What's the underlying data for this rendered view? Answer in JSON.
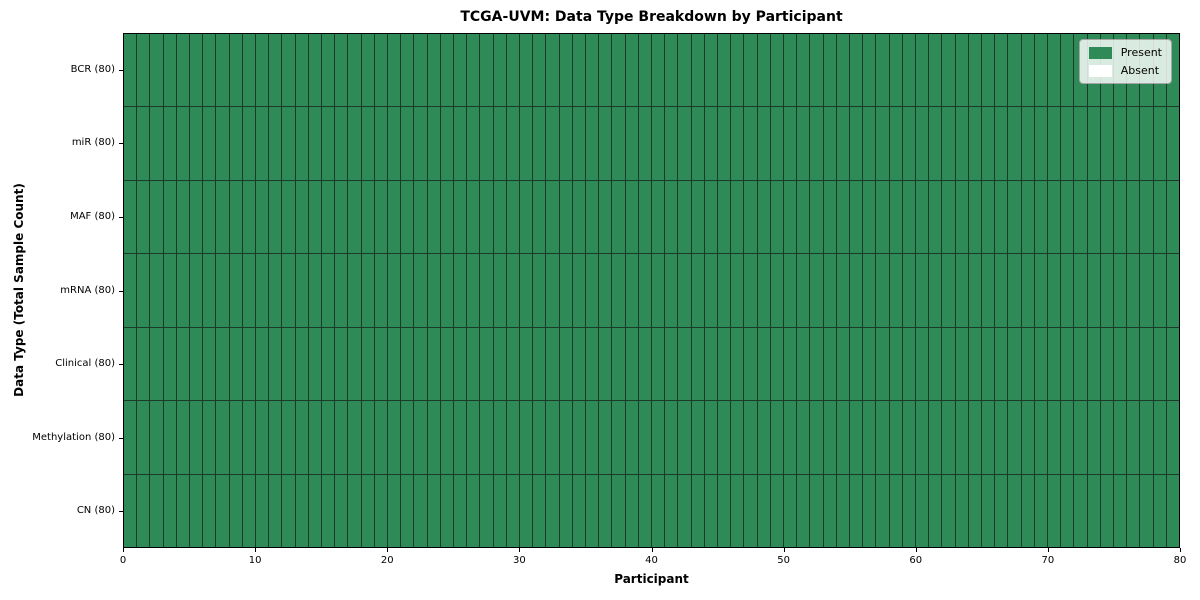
{
  "figure": {
    "title": "TCGA-UVM: Data Type Breakdown by Participant"
  },
  "chart_data": {
    "type": "heatmap",
    "title": "TCGA-UVM: Data Type Breakdown by Participant",
    "xlabel": "Participant",
    "ylabel": "Data Type (Total Sample Count)",
    "xlim": [
      0,
      80
    ],
    "x_ticks": [
      0,
      10,
      20,
      30,
      40,
      50,
      60,
      70,
      80
    ],
    "n_participants": 80,
    "rows": [
      {
        "label": "BCR (80)",
        "data_type": "BCR",
        "total_sample_count": 80,
        "present_count": 80
      },
      {
        "label": "miR (80)",
        "data_type": "miR",
        "total_sample_count": 80,
        "present_count": 80
      },
      {
        "label": "MAF (80)",
        "data_type": "MAF",
        "total_sample_count": 80,
        "present_count": 80
      },
      {
        "label": "mRNA (80)",
        "data_type": "mRNA",
        "total_sample_count": 80,
        "present_count": 80
      },
      {
        "label": "Clinical (80)",
        "data_type": "Clinical",
        "total_sample_count": 80,
        "present_count": 80
      },
      {
        "label": "Methylation (80)",
        "data_type": "Methylation",
        "total_sample_count": 80,
        "present_count": 80
      },
      {
        "label": "CN (80)",
        "data_type": "CN",
        "total_sample_count": 80,
        "present_count": 80
      }
    ],
    "legend": {
      "position": "upper right",
      "entries": [
        {
          "label": "Present",
          "color": "#2e8b57"
        },
        {
          "label": "Absent",
          "color": "#ffffff"
        }
      ]
    },
    "colors": {
      "present": "#2e8b57",
      "absent": "#ffffff",
      "cell_edge": "#1c3a28",
      "spine": "#000000"
    }
  }
}
